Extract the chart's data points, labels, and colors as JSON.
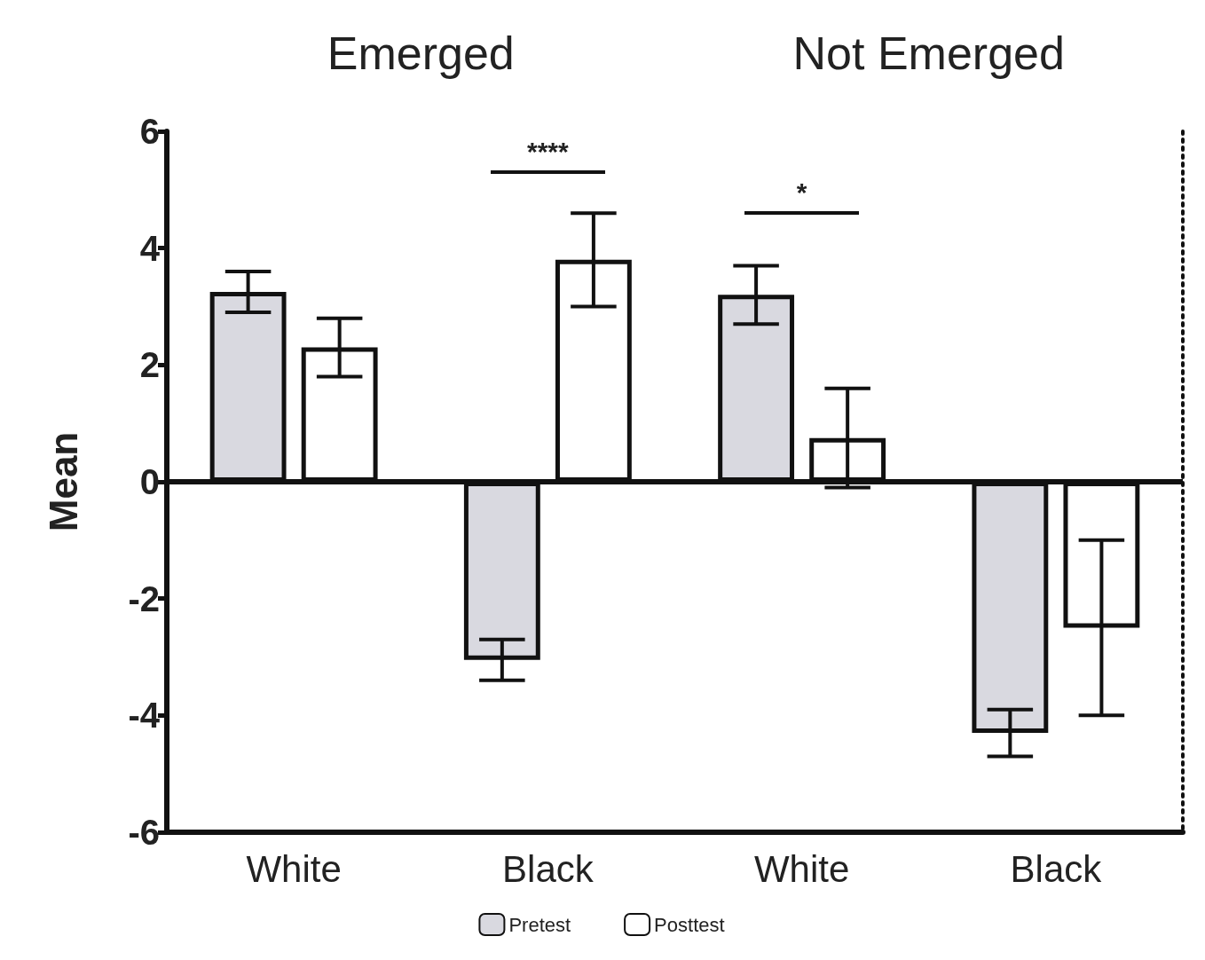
{
  "chart_data": {
    "type": "bar",
    "ylabel": "Mean",
    "categories": [
      "White",
      "Black",
      "White",
      "Black"
    ],
    "series": [
      {
        "name": "Pretest",
        "color": "#d9d9e0",
        "values": [
          3.25,
          -3.05,
          3.2,
          -4.3
        ],
        "errors": [
          0.35,
          0.35,
          0.5,
          0.4
        ]
      },
      {
        "name": "Posttest",
        "color": "#ffffff",
        "values": [
          2.3,
          3.8,
          0.75,
          -2.5
        ],
        "errors": [
          0.5,
          0.8,
          0.85,
          1.5
        ]
      }
    ],
    "ylim": [
      -6,
      6
    ],
    "yticks": [
      -6,
      -4,
      -2,
      0,
      2,
      4,
      6
    ],
    "grid": false,
    "legend": "bottom",
    "ref_lines": [
      {
        "axis": "y",
        "value": 0,
        "line_style": "solid",
        "color": "#111111"
      }
    ],
    "annotations": [
      "Emerged",
      "Not Emerged",
      "****",
      "*"
    ]
  }
}
